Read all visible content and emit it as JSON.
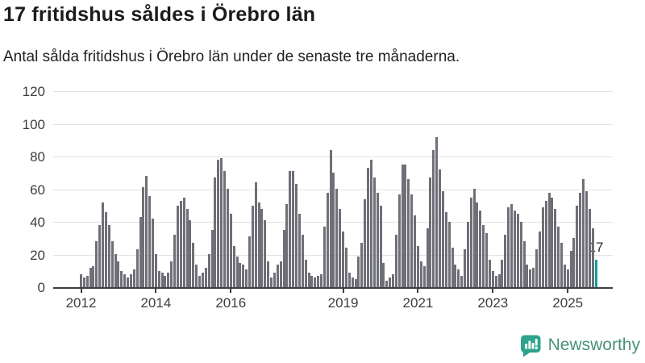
{
  "header": {
    "title": "17 fritidshus såldes i Örebro län",
    "subtitle": "Antal sålda fritidshus i Örebro län under de senaste tre månaderna."
  },
  "chart_data": {
    "type": "bar",
    "title": "17 fritidshus såldes i Örebro län",
    "subtitle": "Antal sålda fritidshus i Örebro län under de senaste tre månaderna.",
    "xlabel": "",
    "ylabel": "",
    "ylim": [
      0,
      120
    ],
    "y_ticks": [
      0,
      20,
      40,
      60,
      80,
      100,
      120
    ],
    "x_tick_years": [
      2012,
      2014,
      2016,
      2019,
      2021,
      2023,
      2025
    ],
    "grid": "horizontal",
    "bar_interval": "monthly",
    "annotation_label": "17",
    "highlight_last_bar": true,
    "years": [
      {
        "year": 2012,
        "values": [
          8,
          6,
          7,
          12,
          13,
          28,
          38,
          52,
          46,
          38,
          28,
          20
        ]
      },
      {
        "year": 2013,
        "values": [
          16,
          10,
          8,
          6,
          8,
          11,
          23,
          43,
          61,
          68,
          56,
          42
        ]
      },
      {
        "year": 2014,
        "values": [
          20,
          10,
          9,
          7,
          9,
          16,
          32,
          50,
          53,
          55,
          48,
          41
        ]
      },
      {
        "year": 2015,
        "values": [
          27,
          14,
          7,
          9,
          12,
          20,
          35,
          67,
          78,
          79,
          71,
          60
        ]
      },
      {
        "year": 2016,
        "values": [
          45,
          25,
          19,
          15,
          14,
          11,
          31,
          50,
          64,
          52,
          48,
          41
        ]
      },
      {
        "year": 2017,
        "values": [
          16,
          6,
          9,
          14,
          16,
          35,
          51,
          71,
          71,
          63,
          45,
          32
        ]
      },
      {
        "year": 2018,
        "values": [
          17,
          9,
          7,
          6,
          7,
          8,
          37,
          58,
          84,
          70,
          60,
          48
        ]
      },
      {
        "year": 2019,
        "values": [
          34,
          24,
          9,
          6,
          5,
          19,
          27,
          54,
          73,
          78,
          67,
          58
        ]
      },
      {
        "year": 2020,
        "values": [
          50,
          15,
          4,
          6,
          8,
          32,
          57,
          75,
          75,
          66,
          57,
          44
        ]
      },
      {
        "year": 2021,
        "values": [
          25,
          16,
          13,
          36,
          67,
          84,
          92,
          72,
          59,
          46,
          40,
          24
        ]
      },
      {
        "year": 2022,
        "values": [
          14,
          11,
          7,
          23,
          40,
          55,
          60,
          52,
          47,
          38,
          33,
          17
        ]
      },
      {
        "year": 2023,
        "values": [
          10,
          7,
          8,
          17,
          32,
          49,
          51,
          47,
          45,
          40,
          28,
          14
        ]
      },
      {
        "year": 2024,
        "values": [
          11,
          12,
          23,
          34,
          49,
          53,
          58,
          55,
          48,
          37,
          27,
          14
        ]
      },
      {
        "year": 2025,
        "values": [
          11,
          22,
          30,
          50,
          58,
          66,
          59,
          48,
          36,
          17
        ]
      }
    ]
  },
  "colors": {
    "bar": "#6f6f78",
    "highlight": "#00a39b",
    "axis": "#3e3e3e",
    "gridline": "#e2e2e2",
    "logo_icon": "#2fa38b",
    "logo_text": "#47927e"
  },
  "branding": {
    "name": "Newsworthy"
  }
}
